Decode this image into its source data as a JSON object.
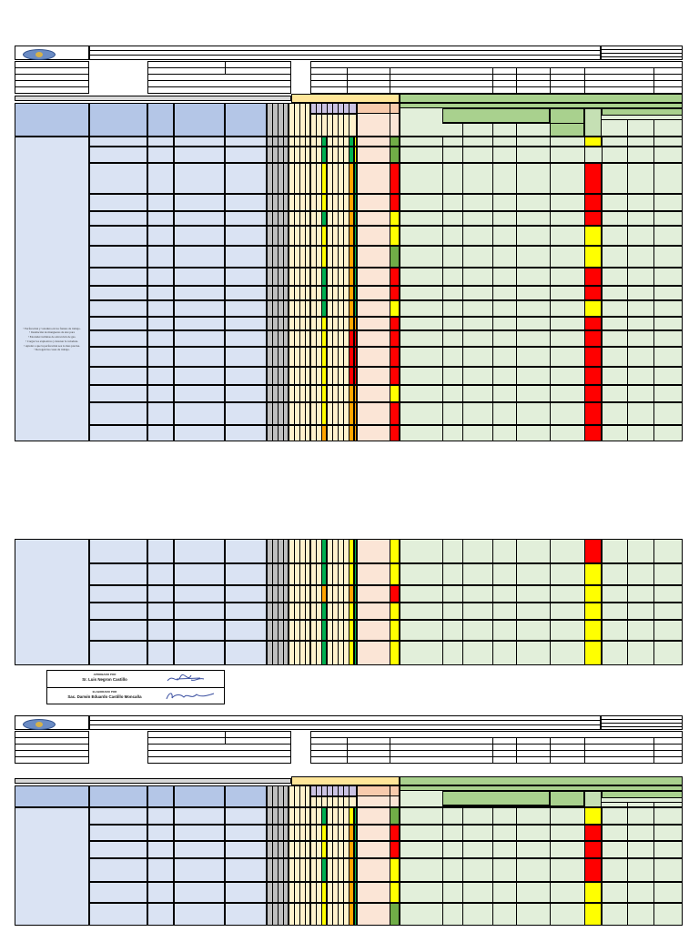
{
  "colors": {
    "header_gray": "#d9d9d9",
    "header_blue": "#b4c6e7",
    "body_blue": "#dae3f3",
    "eval_yellow": "#ffe699",
    "eval_light": "#fff2cc",
    "eval_lilac": "#cbc3e3",
    "peach": "#fbe5d6",
    "peach_dark": "#f8cbad",
    "green_head": "#a9d18e",
    "green_body": "#e2efda",
    "gray_col": "#bfbfbf",
    "risk_red": "#ff0000",
    "risk_yellow": "#ffff00",
    "risk_orange": "#ffa500",
    "risk_green": "#00b050",
    "risk_lightgreen": "#70ad47"
  },
  "logo": {
    "icon": "company-seal-icon"
  },
  "section1": {
    "left_text": [
      "• Perforación y voladura en los frentes de trabajo.",
      "• Instalación de mangueras de aire para",
      "• Encender turbinas de extracción de gas.",
      "• Cargar los explosivos y detonar la voladura.",
      "• Ayudar a que la perforación sea lo mas precisa.",
      "• Recogen las cosas de trabajo."
    ]
  },
  "signature_block": {
    "approved_caption": "APROBADO POR",
    "approved_name": "Sr. Luis Negron Castillo",
    "prepared_caption": "ELABORADO POR",
    "prepared_name": "Sac. Darwin Eduardo Castillo Moncaña",
    "signature_icon": "handwritten-signature-icon"
  },
  "section1_rows": [
    {
      "v": "G",
      "a": "G",
      "p": "Y",
      "d": "LG",
      "r": "Y"
    },
    {
      "v": "G",
      "a": "G",
      "p": "Y",
      "d": "LG",
      "r": ""
    },
    {
      "v": "Y",
      "a": "O",
      "p": "G",
      "d": "R",
      "r": "R"
    },
    {
      "v": "Y",
      "a": "O",
      "p": "G",
      "d": "R",
      "r": "R"
    },
    {
      "v": "G",
      "a": "O",
      "p": "G",
      "d": "Y",
      "r": "R"
    },
    {
      "v": "Y",
      "a": "O",
      "p": "G",
      "d": "Y",
      "r": "Y"
    },
    {
      "v": "Y",
      "a": "O",
      "p": "G",
      "d": "LG",
      "r": "Y"
    },
    {
      "v": "G",
      "a": "O",
      "p": "G",
      "d": "R",
      "r": "R"
    },
    {
      "v": "G",
      "a": "O",
      "p": "G",
      "d": "R",
      "r": "R"
    },
    {
      "v": "G",
      "a": "O",
      "p": "G",
      "d": "Y",
      "r": "Y"
    },
    {
      "v": "Y",
      "a": "O",
      "p": "O",
      "d": "R",
      "r": "R"
    },
    {
      "v": "Y",
      "a": "R",
      "p": "R",
      "d": "R",
      "r": "R"
    },
    {
      "v": "Y",
      "a": "R",
      "p": "R",
      "d": "R",
      "r": "R"
    },
    {
      "v": "Y",
      "a": "R",
      "p": "R",
      "d": "R",
      "r": "R"
    },
    {
      "v": "Y",
      "a": "O",
      "p": "O",
      "d": "Y",
      "r": "R"
    },
    {
      "v": "Y",
      "a": "O",
      "p": "O",
      "d": "R",
      "r": "R"
    },
    {
      "v": "O",
      "a": "O",
      "p": "O",
      "d": "R",
      "r": "R"
    }
  ],
  "section2_rows": [
    {
      "v": "G",
      "a": "Y",
      "p": "G",
      "d": "Y",
      "r": "R"
    },
    {
      "v": "G",
      "a": "Y",
      "p": "G",
      "d": "Y",
      "r": "Y"
    },
    {
      "v": "O",
      "a": "O",
      "p": "G",
      "d": "R",
      "r": "Y"
    },
    {
      "v": "G",
      "a": "Y",
      "p": "G",
      "d": "Y",
      "r": "Y"
    },
    {
      "v": "G",
      "a": "Y",
      "p": "G",
      "d": "Y",
      "r": "Y"
    },
    {
      "v": "G",
      "a": "Y",
      "p": "G",
      "d": "Y",
      "r": "Y"
    }
  ],
  "section3_rows": [
    {
      "v": "G",
      "a": "Y",
      "p": "G",
      "d": "LG",
      "r": "Y"
    },
    {
      "v": "Y",
      "a": "O",
      "p": "G",
      "d": "R",
      "r": "R"
    },
    {
      "v": "Y",
      "a": "O",
      "p": "G",
      "d": "R",
      "r": "R"
    },
    {
      "v": "G",
      "a": "O",
      "p": "G",
      "d": "Y",
      "r": "R"
    },
    {
      "v": "Y",
      "a": "O",
      "p": "G",
      "d": "Y",
      "r": "Y"
    },
    {
      "v": "Y",
      "a": "O",
      "p": "G",
      "d": "LG",
      "r": "Y"
    }
  ]
}
